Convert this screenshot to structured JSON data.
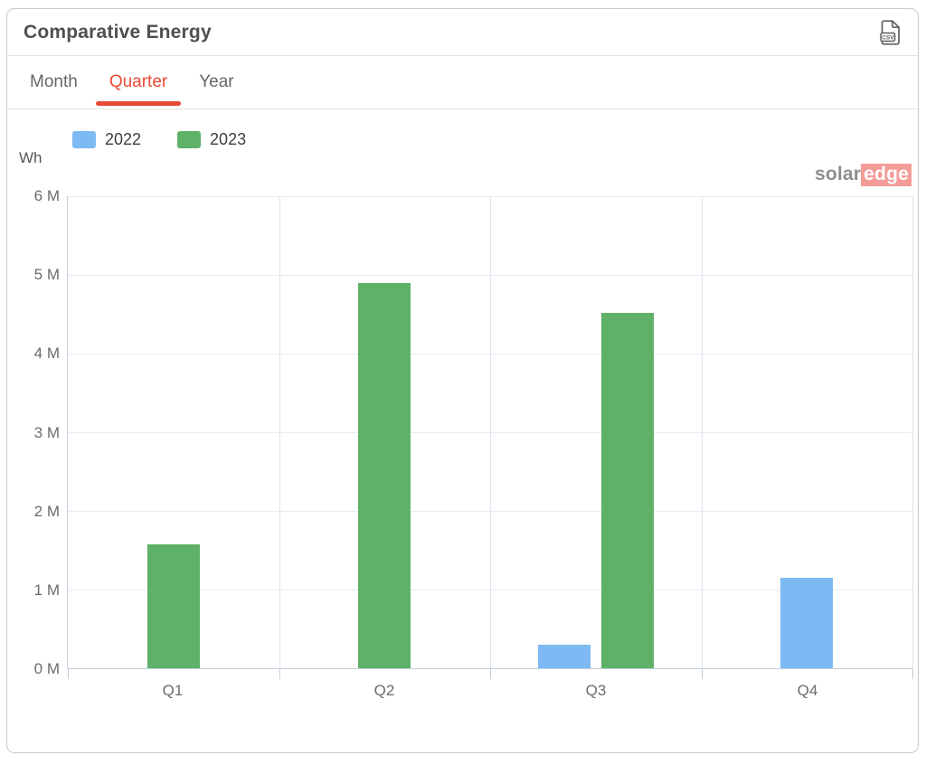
{
  "header": {
    "title": "Comparative Energy",
    "export_csv_label": "CSV"
  },
  "tabs": [
    {
      "label": "Month"
    },
    {
      "label": "Quarter"
    },
    {
      "label": "Year"
    }
  ],
  "watermark": {
    "part1": "solar",
    "part2": "edge"
  },
  "colors": {
    "accent_red": "#e74b35",
    "bar_blue": "#7db9f2",
    "bar_green": "#5fb168",
    "watermark_red": "#ee5f58"
  },
  "chart_data": {
    "type": "bar",
    "title": "Comparative Energy",
    "categories": [
      "Q1",
      "Q2",
      "Q3",
      "Q4"
    ],
    "series": [
      {
        "name": "2022",
        "color": "#7db9f2",
        "values": [
          0,
          0,
          0.3,
          1.15
        ]
      },
      {
        "name": "2023",
        "color": "#5fb168",
        "values": [
          1.58,
          4.9,
          4.52,
          0
        ]
      }
    ],
    "ylabel": "Wh",
    "xlabel": "",
    "ylim": [
      0,
      6
    ],
    "ytick_step": 1,
    "ytick_suffix": " M",
    "grid": true,
    "legend_position": "top-left"
  }
}
